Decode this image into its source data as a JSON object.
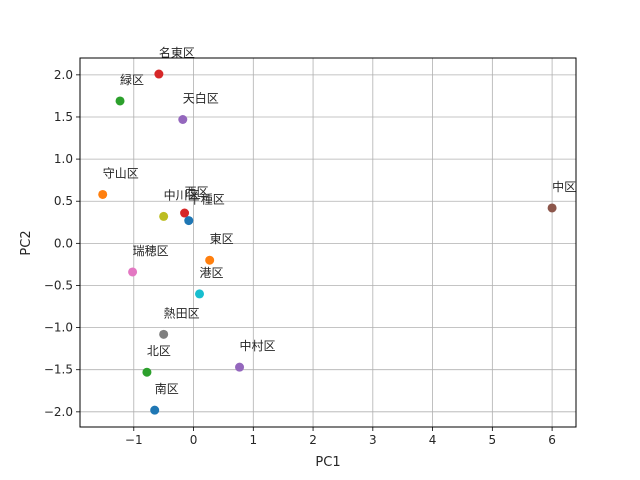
{
  "chart_data": {
    "type": "scatter",
    "title": "",
    "xlabel": "PC1",
    "ylabel": "PC2",
    "xlim": [
      -1.9,
      6.4
    ],
    "ylim": [
      -2.18,
      2.2
    ],
    "xticks": [
      -1,
      0,
      1,
      2,
      3,
      4,
      5,
      6
    ],
    "xtick_labels": [
      "−1",
      "0",
      "1",
      "2",
      "3",
      "4",
      "5",
      "6"
    ],
    "yticks": [
      -2.0,
      -1.5,
      -1.0,
      -0.5,
      0.0,
      0.5,
      1.0,
      1.5,
      2.0
    ],
    "ytick_labels": [
      "−2.0",
      "−1.5",
      "−1.0",
      "−0.5",
      "0.0",
      "0.5",
      "1.0",
      "1.5",
      "2.0"
    ],
    "grid": true,
    "points": [
      {
        "label": "名東区",
        "x": -0.58,
        "y": 2.01,
        "color": "#d62728"
      },
      {
        "label": "緑区",
        "x": -1.23,
        "y": 1.69,
        "color": "#2ca02c"
      },
      {
        "label": "天白区",
        "x": -0.18,
        "y": 1.47,
        "color": "#9467bd"
      },
      {
        "label": "守山区",
        "x": -1.52,
        "y": 0.58,
        "color": "#ff7f0e"
      },
      {
        "label": "中川区",
        "x": -0.5,
        "y": 0.32,
        "color": "#bcbd22"
      },
      {
        "label": "西区",
        "x": -0.15,
        "y": 0.36,
        "color": "#d62728"
      },
      {
        "label": "千種区",
        "x": -0.08,
        "y": 0.27,
        "color": "#1f77b4"
      },
      {
        "label": "中区",
        "x": 6.0,
        "y": 0.42,
        "color": "#8c564b"
      },
      {
        "label": "東区",
        "x": 0.27,
        "y": -0.2,
        "color": "#ff7f0e"
      },
      {
        "label": "瑞穂区",
        "x": -1.02,
        "y": -0.34,
        "color": "#e377c2"
      },
      {
        "label": "港区",
        "x": 0.1,
        "y": -0.6,
        "color": "#17becf"
      },
      {
        "label": "熱田区",
        "x": -0.5,
        "y": -1.08,
        "color": "#7f7f7f"
      },
      {
        "label": "中村区",
        "x": 0.77,
        "y": -1.47,
        "color": "#9467bd"
      },
      {
        "label": "北区",
        "x": -0.78,
        "y": -1.53,
        "color": "#2ca02c"
      },
      {
        "label": "南区",
        "x": -0.65,
        "y": -1.98,
        "color": "#1f77b4"
      }
    ]
  }
}
